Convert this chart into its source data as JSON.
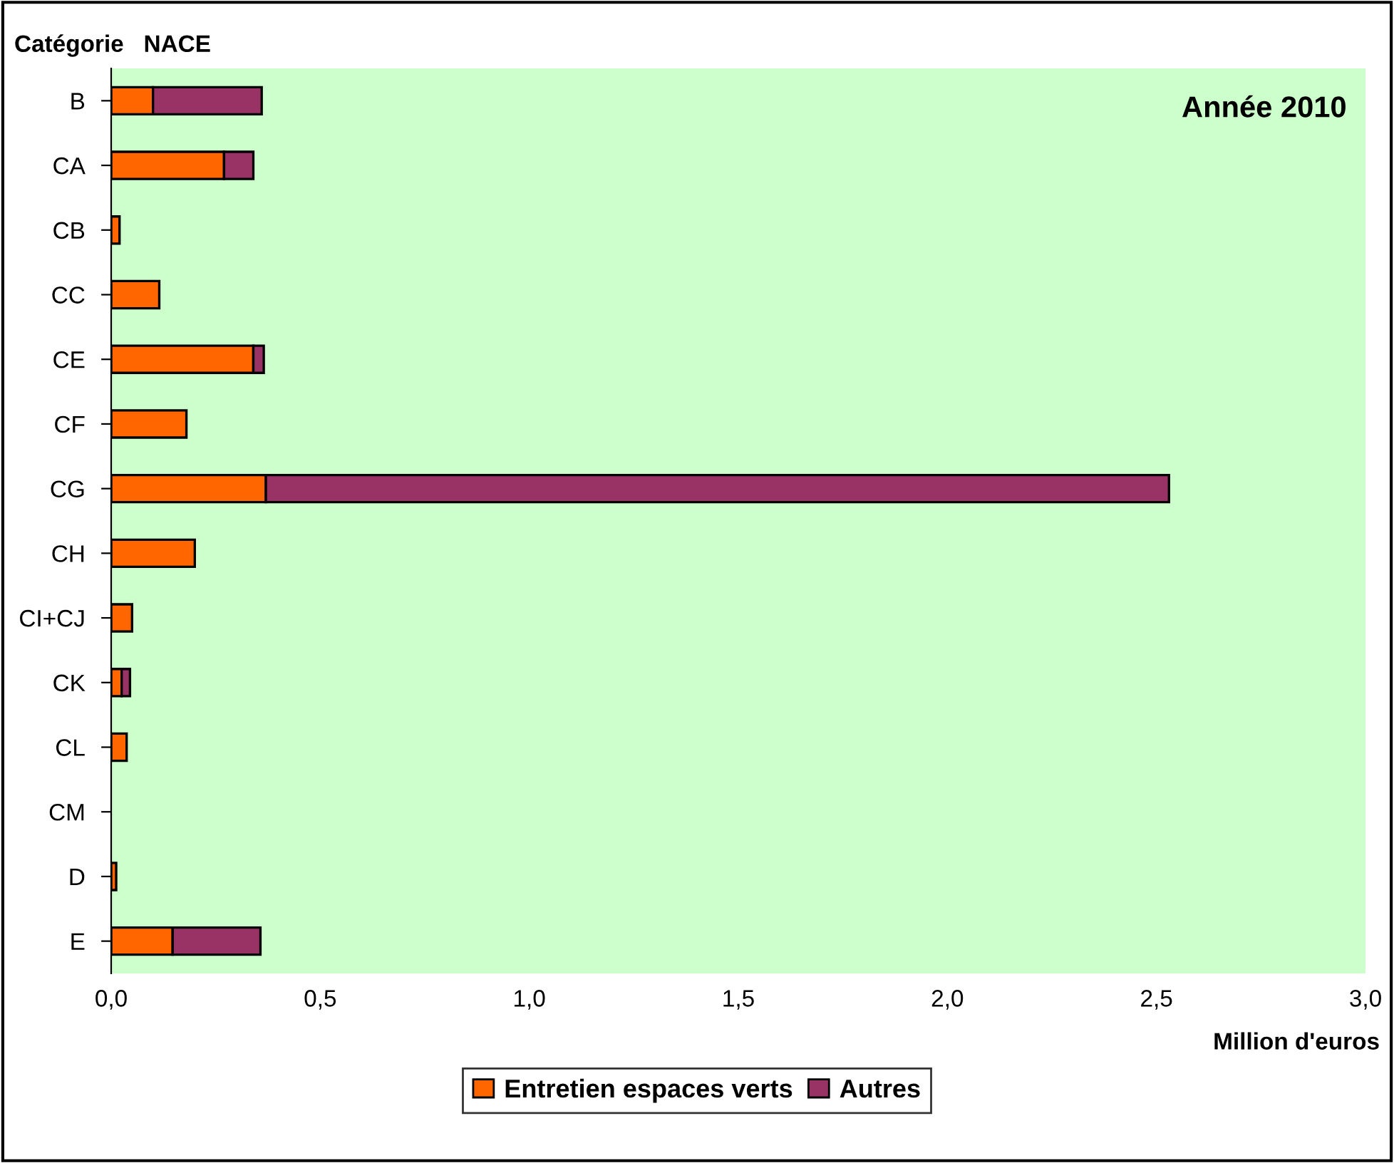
{
  "chart_data": {
    "type": "bar",
    "orientation": "horizontal",
    "stacked": true,
    "title": "Année 2010",
    "ylabel": "Catégorie   NACE",
    "xlabel": "Million d'euros",
    "categories": [
      "B",
      "CA",
      "CB",
      "CC",
      "CE",
      "CF",
      "CG",
      "CH",
      "CI+CJ",
      "CK",
      "CL",
      "CM",
      "D",
      "E"
    ],
    "series": [
      {
        "name": "Entretien espaces verts",
        "color": "#ff6600",
        "values": [
          0.1,
          0.27,
          0.02,
          0.115,
          0.34,
          0.18,
          0.37,
          0.2,
          0.05,
          0.025,
          0.037,
          null,
          0.012,
          0.147
        ]
      },
      {
        "name": "Autres",
        "color": "#993366",
        "values": [
          0.26,
          0.07,
          null,
          null,
          0.025,
          null,
          2.16,
          null,
          null,
          0.02,
          null,
          null,
          null,
          0.21
        ]
      }
    ],
    "xlim": [
      0,
      3
    ],
    "xticks": [
      {
        "value": 0,
        "label": "0,0"
      },
      {
        "value": 0.5,
        "label": "0,5"
      },
      {
        "value": 1,
        "label": "1,0"
      },
      {
        "value": 1.5,
        "label": "1,5"
      },
      {
        "value": 2,
        "label": "2,0"
      },
      {
        "value": 2.5,
        "label": "2,5"
      },
      {
        "value": 3,
        "label": "3,0"
      }
    ],
    "grid": false,
    "legend": "bottom"
  }
}
